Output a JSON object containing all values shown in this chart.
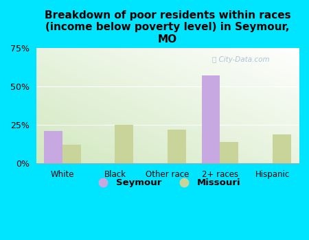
{
  "title": "Breakdown of poor residents within races\n(income below poverty level) in Seymour,\nMO",
  "categories": [
    "White",
    "Black",
    "Other race",
    "2+ races",
    "Hispanic"
  ],
  "seymour_values": [
    21,
    0,
    0,
    57,
    0
  ],
  "missouri_values": [
    12,
    25,
    22,
    14,
    19
  ],
  "seymour_color": "#c8a8e0",
  "missouri_color": "#c8d49a",
  "background_outer": "#00e5ff",
  "ylim": [
    0,
    75
  ],
  "yticks": [
    0,
    25,
    50,
    75
  ],
  "ytick_labels": [
    "0%",
    "25%",
    "50%",
    "75%"
  ],
  "bar_width": 0.35,
  "title_fontsize": 11,
  "legend_labels": [
    "Seymour",
    "Missouri"
  ],
  "watermark": "City-Data.com"
}
